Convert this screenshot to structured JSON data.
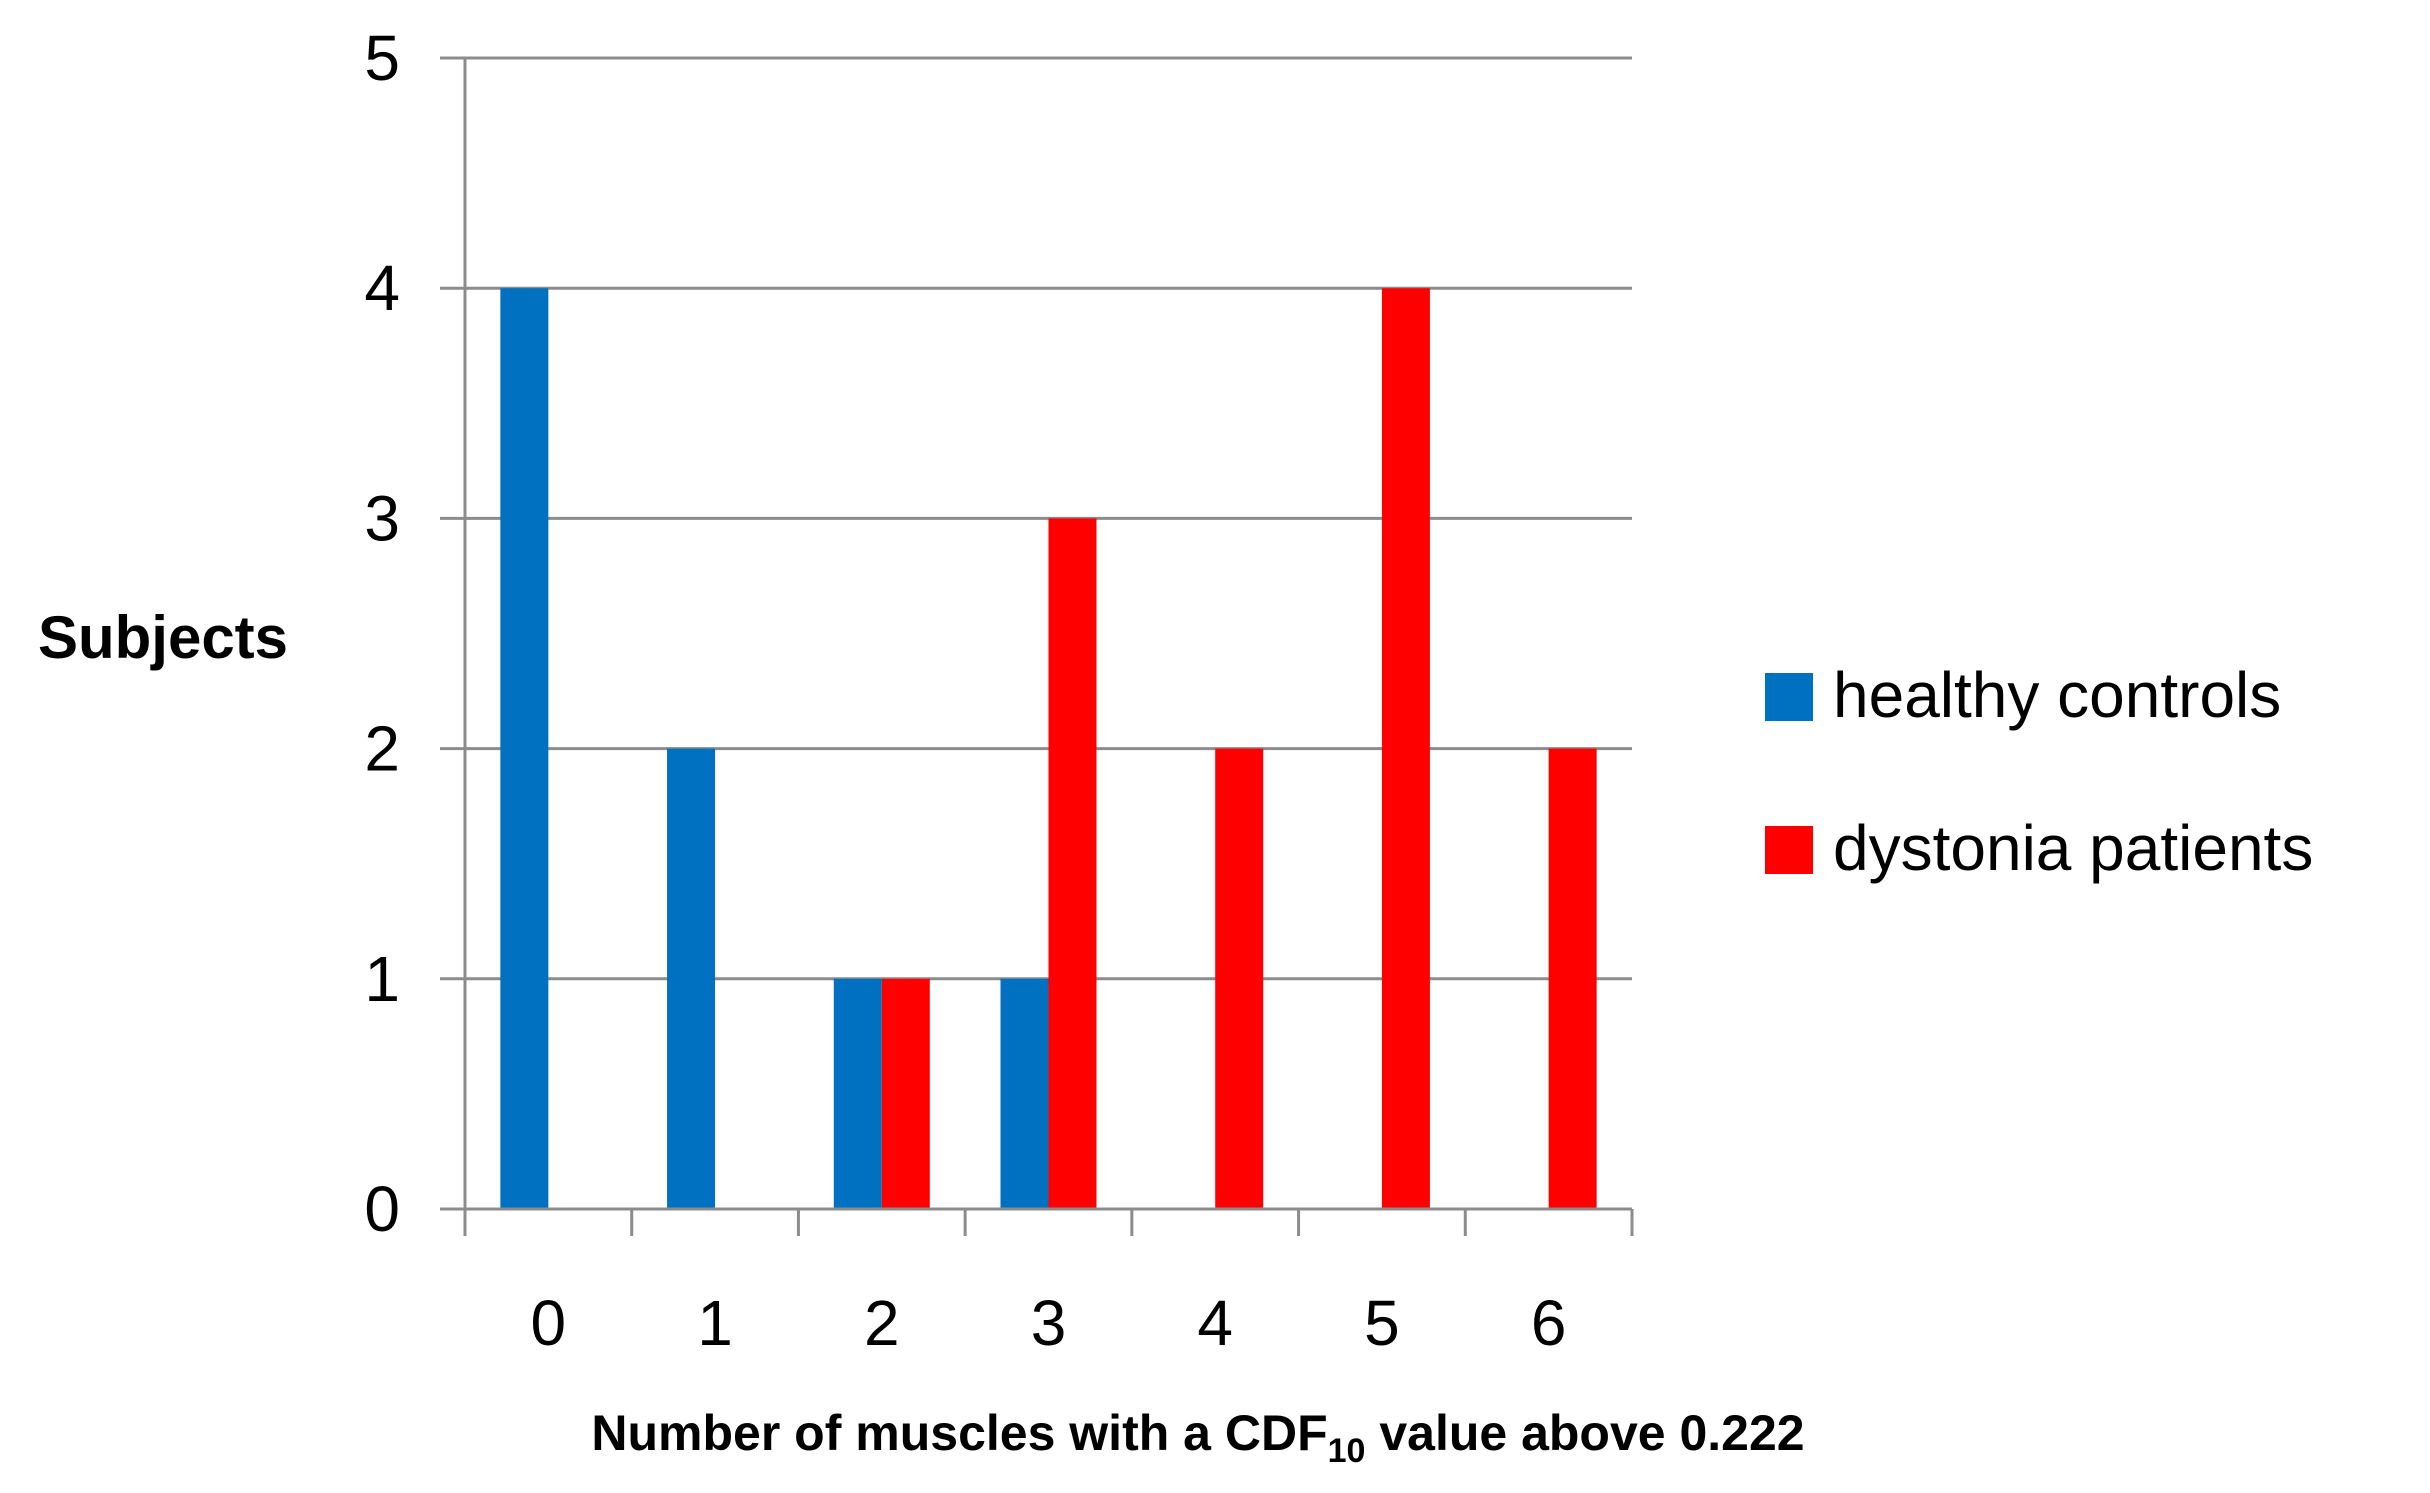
{
  "chart_data": {
    "type": "bar",
    "title": "",
    "xlabel": {
      "prefix": "Number of muscles with a CDF",
      "subscript": "10",
      "suffix": " value above 0.222"
    },
    "ylabel": "Subjects",
    "categories": [
      "0",
      "1",
      "2",
      "3",
      "4",
      "5",
      "6"
    ],
    "ylim": [
      0,
      5
    ],
    "yticks": [
      "0",
      "1",
      "2",
      "3",
      "4",
      "5"
    ],
    "grid": true,
    "legend_position": "right",
    "series": [
      {
        "name": "healthy controls",
        "color": "#0070C0",
        "values": [
          4,
          2,
          1,
          1,
          0,
          0,
          0
        ]
      },
      {
        "name": "dystonia patients",
        "color": "#FF0000",
        "values": [
          0,
          0,
          1,
          3,
          2,
          4,
          2
        ]
      }
    ]
  }
}
